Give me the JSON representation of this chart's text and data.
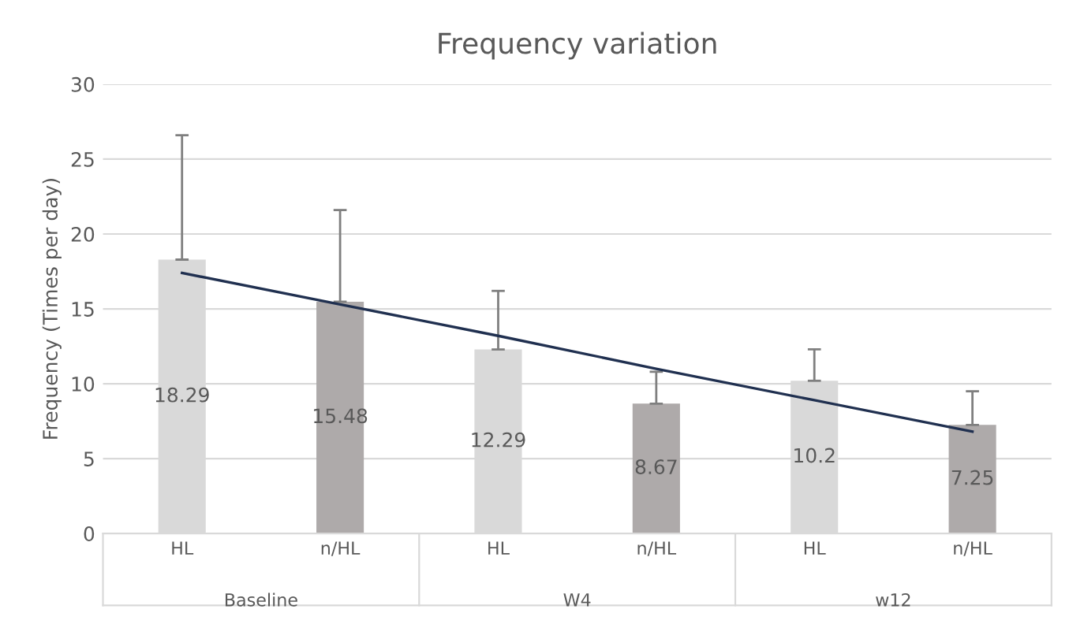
{
  "chart_data": {
    "type": "bar",
    "title": "Frequency variation",
    "ylabel": "Frequency (Times per day)",
    "categories": [
      "HL",
      "n/HL",
      "HL",
      "n/HL",
      "HL",
      "n/HL"
    ],
    "series": [
      {
        "values": [
          18.29,
          15.48,
          12.29,
          8.67,
          10.2,
          7.25
        ],
        "colors": [
          "#d9d9d9",
          "#aeaaaa",
          "#d9d9d9",
          "#aeaaaa",
          "#d9d9d9",
          "#aeaaaa"
        ],
        "errors": [
          [
            18.29,
            26.6
          ],
          [
            15.48,
            21.6
          ],
          [
            12.29,
            16.2
          ],
          [
            8.67,
            10.8
          ],
          [
            10.2,
            12.3
          ],
          [
            7.25,
            9.5
          ]
        ],
        "data_labels": true
      },
      {
        "type": "line",
        "color": "#203050",
        "values": [
          17.4,
          15.3,
          13.2,
          11.0,
          8.9,
          6.8
        ]
      }
    ],
    "annotations": [
      "Baseline",
      "W4",
      "w12"
    ],
    "ylim": [
      0,
      30
    ],
    "yticks": [
      0,
      5,
      10,
      15,
      20,
      25,
      30
    ],
    "grid": "y"
  }
}
